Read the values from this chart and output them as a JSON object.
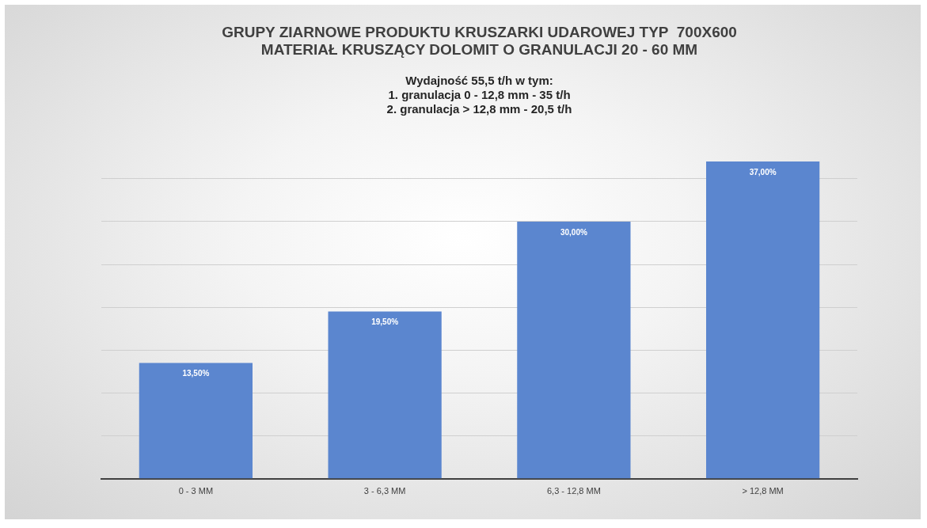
{
  "chart_data": {
    "type": "bar",
    "title": "GRUPY ZIARNOWE PRODUKTU KRUSZARKI UDAROWEJ TYP  700X600\nMATERIAŁ KRUSZĄCY DOLOMIT O GRANULACJI 20 - 60 MM",
    "subtitle": "Wydajność 55,5 t/h w tym:\n1. granulacja 0 - 12,8 mm - 35 t/h\n2. granulacja > 12,8 mm - 20,5 t/h",
    "categories": [
      "0 - 3 MM",
      "3 - 6,3 MM",
      "6,3 - 12,8 MM",
      "> 12,8 MM"
    ],
    "values": [
      13.5,
      19.5,
      30,
      37
    ],
    "color": "#5b86cf",
    "value_labels": [
      "13,50%",
      "19,50%",
      "30,00%",
      "37,00%"
    ],
    "yticks": [
      {
        "value": 0,
        "label": null
      },
      {
        "value": 5,
        "label": null
      },
      {
        "value": 10,
        "label": null
      },
      {
        "value": 15,
        "label": null
      },
      {
        "value": 20,
        "label": null
      },
      {
        "value": 25,
        "label": null
      },
      {
        "value": 30,
        "label": null
      },
      {
        "value": 35,
        "label": null
      }
    ],
    "grid": "y",
    "tick_labels": "x",
    "legend": false
  }
}
